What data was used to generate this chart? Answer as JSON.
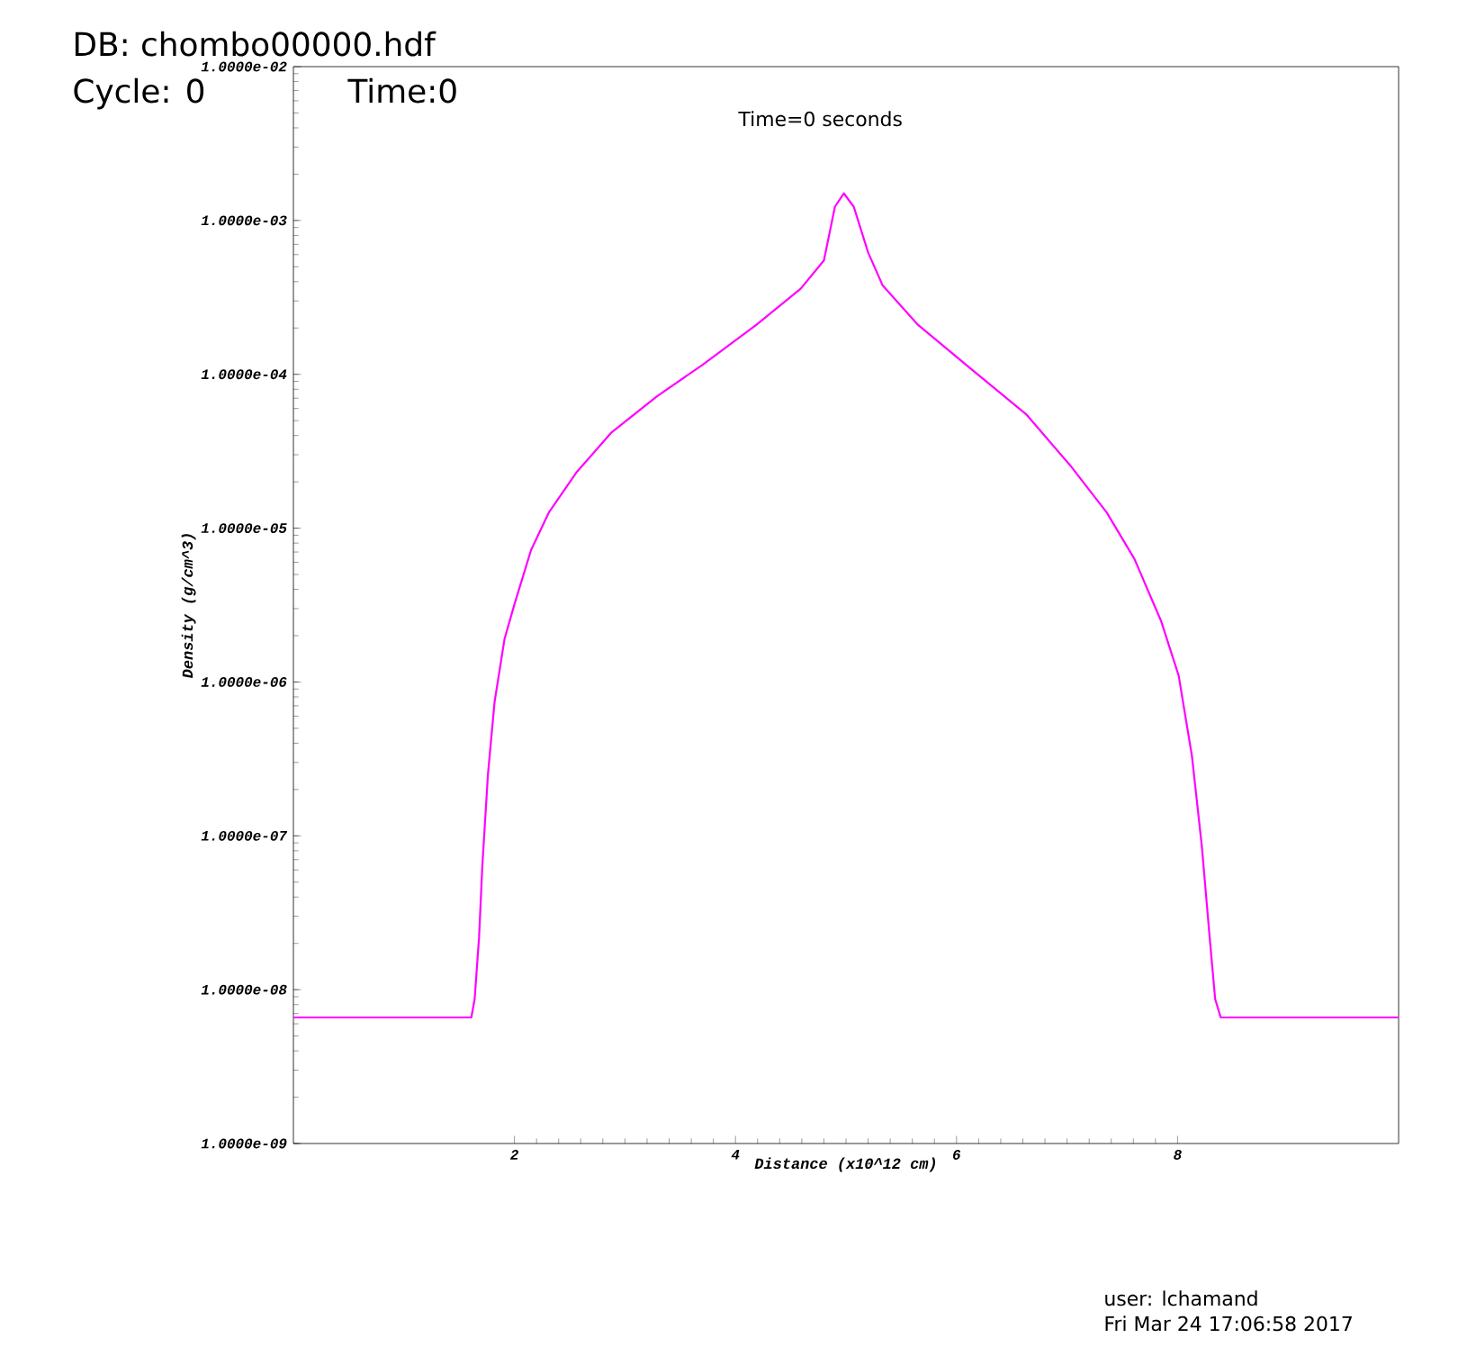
{
  "chart_data": {
    "type": "line",
    "xlabel": "Distance (x10^12 cm)",
    "ylabel": "Density (g/cm^3)",
    "log": "y",
    "xlim": [
      0,
      10
    ],
    "xticks": [
      2,
      4,
      6,
      8
    ],
    "ylim": [
      1e-09,
      0.01
    ],
    "yticks": [
      {
        "value": 1e-09,
        "label": "1.0000e-09"
      },
      {
        "value": 1e-08,
        "label": "1.0000e-08"
      },
      {
        "value": 1e-07,
        "label": "1.0000e-07"
      },
      {
        "value": 1e-06,
        "label": "1.0000e-06"
      },
      {
        "value": 1e-05,
        "label": "1.0000e-05"
      },
      {
        "value": 0.0001,
        "label": "1.0000e-04"
      },
      {
        "value": 0.001,
        "label": "1.0000e-03"
      },
      {
        "value": 0.01,
        "label": "1.0000e-02"
      }
    ],
    "x": [
      0,
      1.61,
      1.64,
      1.68,
      1.71,
      1.76,
      1.82,
      1.91,
      2.0,
      2.15,
      2.31,
      2.56,
      2.88,
      3.29,
      3.7,
      4.19,
      4.59,
      4.8,
      4.9,
      4.98,
      5.07,
      5.2,
      5.33,
      5.65,
      6.14,
      6.63,
      7.04,
      7.36,
      7.61,
      7.85,
      8.01,
      8.13,
      8.22,
      8.29,
      8.34,
      8.39,
      10
    ],
    "series": [
      {
        "color": "#ff00ff",
        "values": [
          6.6e-09,
          6.6e-09,
          8.7e-09,
          2.2e-08,
          6.5e-08,
          2.5e-07,
          7.4e-07,
          1.9e-06,
          3.2e-06,
          7.2e-06,
          1.26e-05,
          2.3e-05,
          4.2e-05,
          7.2e-05,
          0.000115,
          0.00021,
          0.00036,
          0.00055,
          0.00123,
          0.0015,
          0.00123,
          0.00062,
          0.00038,
          0.00021,
          0.000107,
          5.5e-05,
          2.5e-05,
          1.26e-05,
          6.3e-06,
          2.5e-06,
          1.1e-06,
          3.3e-07,
          8.5e-08,
          2.2e-08,
          8.7e-09,
          6.6e-09,
          6.6e-09
        ]
      }
    ],
    "annotations": [
      "DB: chombo00000.hdf",
      "Cycle: 0",
      "Time:0",
      "Time=0 seconds",
      "user: lchamand",
      "Fri Mar 24 17:06:58 2017"
    ]
  }
}
